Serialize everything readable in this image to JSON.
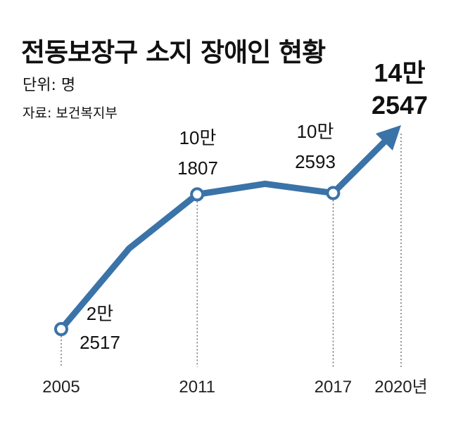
{
  "chart": {
    "title": "전동보장구 소지 장애인 현황",
    "unit": "단위: 명",
    "source": "자료: 보건복지부"
  },
  "chart_data": {
    "type": "line",
    "title": "전동보장구 소지 장애인 현황",
    "xlabel": "",
    "ylabel": "",
    "unit_label": "단위: 명",
    "x_ticks": [
      "2005",
      "2011",
      "2017",
      "2020년"
    ],
    "series": [
      {
        "points": [
          {
            "x": 2005,
            "y": 22517,
            "label_top": "2만",
            "label_bottom": "2517"
          },
          {
            "x": 2008,
            "y": 70000
          },
          {
            "x": 2011,
            "y": 101807,
            "label_top": "10만",
            "label_bottom": "1807"
          },
          {
            "x": 2014,
            "y": 108000
          },
          {
            "x": 2017,
            "y": 102593,
            "label_top": "10만",
            "label_bottom": "2593"
          },
          {
            "x": 2020,
            "y": 142547,
            "label_top": "14만",
            "label_bottom": "2547"
          }
        ]
      }
    ],
    "marked_years": [
      2005,
      2011,
      2017
    ],
    "highlight_last": true,
    "ylim": [
      0,
      160000
    ],
    "grid": false,
    "line_color": "#3a73a8"
  }
}
